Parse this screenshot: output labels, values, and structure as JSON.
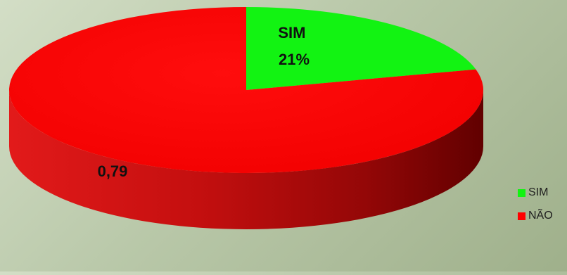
{
  "chart_data": {
    "type": "pie",
    "style": "3d",
    "categories": [
      "SIM",
      "NÃO"
    ],
    "values": [
      0.21,
      0.79
    ],
    "colors": [
      "#12f312",
      "#ff0000"
    ],
    "data_labels": [
      "SIM\n21%",
      "0,79"
    ],
    "legend_position": "bottom-right"
  },
  "legend": {
    "items": [
      {
        "label": "SIM",
        "color": "#12f312"
      },
      {
        "label": "NÃO",
        "color": "#ff0000"
      }
    ]
  },
  "labels": {
    "sim_line1": "SIM",
    "sim_line2": "21%",
    "nao": "0,79"
  }
}
